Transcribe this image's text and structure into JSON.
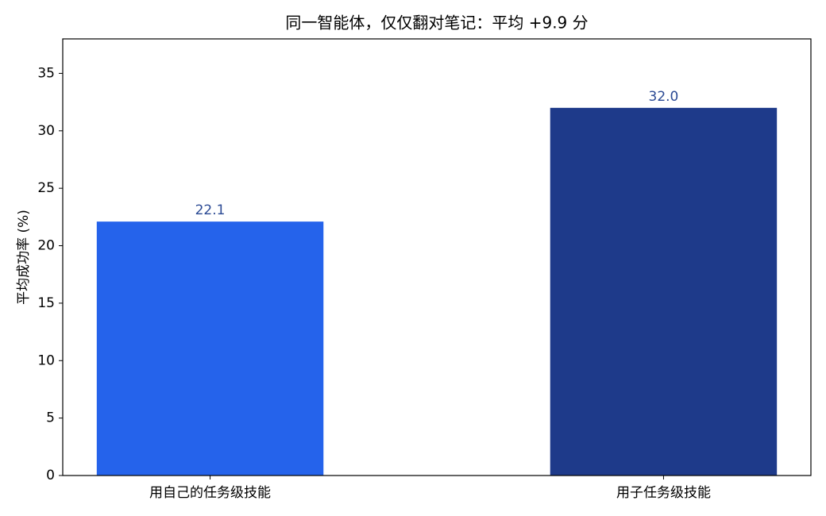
{
  "chart_data": {
    "type": "bar",
    "title": "同一智能体，仅仅翻对笔记：平均 +9.9 分",
    "y_label": "平均成功率 (%)",
    "categories": [
      "用自己的任务级技能",
      "用子任务级技能"
    ],
    "values": [
      22.1,
      32
    ],
    "value_labels": [
      "22.1",
      "32.0"
    ],
    "colors": [
      "#2563eb",
      "#1e3a8a"
    ],
    "ylim": [
      0,
      38
    ],
    "yticks": [
      0,
      5,
      10,
      15,
      20,
      25,
      30,
      35
    ],
    "grid": false
  }
}
